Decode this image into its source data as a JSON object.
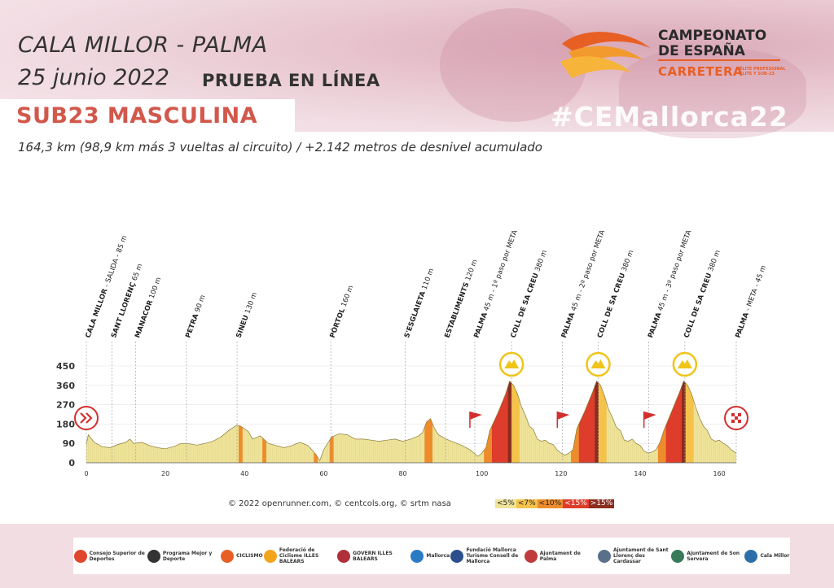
{
  "header": {
    "route": "CALA MILLOR - PALMA",
    "date": "25 junio 2022",
    "race_type": "PRUEBA EN LÍNEA",
    "category": "SUB23 MASCULINA",
    "hashtag": "#CEMallorca22",
    "subtitle": "164,3 km (98,9 km más 3 vueltas al circuito) / +2.142 metros de desnivel acumulado"
  },
  "logo": {
    "line1": "CAMPEONATO",
    "line2": "DE ESPAÑA",
    "line3": "CARRETERA",
    "line4": "ÉLITE PROFESIONAL ÉLITE Y SUB-23"
  },
  "credits": "© 2022 openrunner.com, © centcols.org, © srtm nasa",
  "legend": [
    {
      "label": "<5%",
      "color": "#efe49a"
    },
    {
      "label": "<7%",
      "color": "#f5c24a"
    },
    {
      "label": "<10%",
      "color": "#ee8c2c"
    },
    {
      "label": "<15%",
      "color": "#dd3d2a"
    },
    {
      "label": ">15%",
      "color": "#8b2c1e"
    }
  ],
  "footer": [
    {
      "name": "consejo-superior-deportes",
      "text": "Consejo Superior de Deportes",
      "color": "#e0462d"
    },
    {
      "name": "mpd",
      "text": "Programa Mejor y Deporte",
      "color": "#333333"
    },
    {
      "name": "real-federacion-ciclismo",
      "text": "CICLISMO",
      "color": "#e85f24"
    },
    {
      "name": "federacio-ciclisme-illes-balears",
      "text": "Federació de Ciclisme ILLES BALEARS",
      "color": "#f2a51c"
    },
    {
      "name": "govern-illes-balears",
      "text": "GOVERN ILLES BALEARS",
      "color": "#b0303a"
    },
    {
      "name": "mallorca",
      "text": "Mallorca",
      "color": "#2b7bc4"
    },
    {
      "name": "fundacion-mallorca-turismo",
      "text": "Fundació Mallorca Turisme Consell de Mallorca",
      "color": "#2a4f8c"
    },
    {
      "name": "ajuntament-palma",
      "text": "Ajuntament de Palma",
      "color": "#c03b3b"
    },
    {
      "name": "ajuntament-sant-llorenc",
      "text": "Ajuntament de Sant Llorenç des Cardassar",
      "color": "#5a6f8a"
    },
    {
      "name": "ajuntament-son-servera",
      "text": "Ajuntament de Son Servera",
      "color": "#3a7a5a"
    },
    {
      "name": "cala-millor",
      "text": "Cala Millor",
      "color": "#2c6fa8"
    }
  ],
  "chart_data": {
    "type": "area",
    "title": "",
    "xlabel": "",
    "ylabel": "",
    "xlim": [
      0,
      164.3
    ],
    "ylim": [
      0,
      450
    ],
    "yticks": [
      0,
      90,
      180,
      270,
      360,
      450
    ],
    "xticks": [
      0,
      20,
      40,
      60,
      80,
      100,
      120,
      140,
      160
    ],
    "profile": [
      [
        0,
        85
      ],
      [
        0.5,
        130
      ],
      [
        2,
        95
      ],
      [
        4,
        75
      ],
      [
        6,
        70
      ],
      [
        8,
        85
      ],
      [
        10,
        95
      ],
      [
        11,
        110
      ],
      [
        12,
        90
      ],
      [
        14,
        95
      ],
      [
        16,
        80
      ],
      [
        18,
        70
      ],
      [
        20,
        65
      ],
      [
        22,
        75
      ],
      [
        24,
        90
      ],
      [
        26,
        88
      ],
      [
        28,
        82
      ],
      [
        30,
        90
      ],
      [
        32,
        100
      ],
      [
        34,
        120
      ],
      [
        36,
        150
      ],
      [
        38,
        175
      ],
      [
        39,
        170
      ],
      [
        41,
        145
      ],
      [
        42,
        110
      ],
      [
        44,
        125
      ],
      [
        46,
        90
      ],
      [
        48,
        80
      ],
      [
        50,
        70
      ],
      [
        52,
        80
      ],
      [
        54,
        95
      ],
      [
        56,
        80
      ],
      [
        58,
        40
      ],
      [
        59,
        10
      ],
      [
        60,
        60
      ],
      [
        62,
        120
      ],
      [
        64,
        135
      ],
      [
        66,
        130
      ],
      [
        68,
        110
      ],
      [
        70,
        110
      ],
      [
        72,
        105
      ],
      [
        74,
        100
      ],
      [
        76,
        105
      ],
      [
        78,
        110
      ],
      [
        80,
        100
      ],
      [
        82,
        110
      ],
      [
        84,
        125
      ],
      [
        85,
        140
      ],
      [
        86,
        190
      ],
      [
        87,
        205
      ],
      [
        88,
        160
      ],
      [
        89,
        130
      ],
      [
        91,
        110
      ],
      [
        93,
        95
      ],
      [
        95,
        80
      ],
      [
        97,
        60
      ],
      [
        98,
        45
      ],
      [
        99,
        30
      ],
      [
        100,
        45
      ],
      [
        101,
        70
      ],
      [
        102,
        150
      ],
      [
        104,
        230
      ],
      [
        106,
        320
      ],
      [
        107,
        380
      ],
      [
        108,
        360
      ],
      [
        109,
        320
      ],
      [
        110,
        260
      ],
      [
        111,
        220
      ],
      [
        112,
        170
      ],
      [
        113,
        155
      ],
      [
        114,
        110
      ],
      [
        115,
        100
      ],
      [
        116,
        105
      ],
      [
        117,
        90
      ],
      [
        118,
        85
      ],
      [
        119,
        60
      ],
      [
        120,
        45
      ],
      [
        121,
        35
      ],
      [
        122,
        45
      ],
      [
        123,
        60
      ],
      [
        124,
        160
      ],
      [
        126,
        240
      ],
      [
        128,
        330
      ],
      [
        129,
        380
      ],
      [
        130,
        360
      ],
      [
        131,
        310
      ],
      [
        132,
        250
      ],
      [
        133,
        210
      ],
      [
        134,
        165
      ],
      [
        135,
        150
      ],
      [
        136,
        105
      ],
      [
        137,
        100
      ],
      [
        138,
        110
      ],
      [
        139,
        90
      ],
      [
        140,
        80
      ],
      [
        141,
        55
      ],
      [
        142,
        45
      ],
      [
        143,
        50
      ],
      [
        144,
        60
      ],
      [
        145,
        95
      ],
      [
        146,
        150
      ],
      [
        148,
        240
      ],
      [
        150,
        330
      ],
      [
        151,
        380
      ],
      [
        152,
        360
      ],
      [
        153,
        320
      ],
      [
        154,
        260
      ],
      [
        155,
        210
      ],
      [
        156,
        170
      ],
      [
        157,
        150
      ],
      [
        158,
        110
      ],
      [
        159,
        100
      ],
      [
        160,
        105
      ],
      [
        161,
        90
      ],
      [
        162,
        80
      ],
      [
        163,
        60
      ],
      [
        164.3,
        45
      ]
    ],
    "steep_ranges": [
      {
        "from": 38.5,
        "to": 39.5,
        "level": "<10%"
      },
      {
        "from": 44.5,
        "to": 45.5,
        "level": "<10%"
      },
      {
        "from": 57.5,
        "to": 58.5,
        "level": "<10%"
      },
      {
        "from": 61.5,
        "to": 62.5,
        "level": "<10%"
      },
      {
        "from": 85.5,
        "to": 87.5,
        "level": "<10%"
      },
      {
        "from": 100.5,
        "to": 102.5,
        "level": "<10%"
      },
      {
        "from": 102.5,
        "to": 106.5,
        "level": "<15%"
      },
      {
        "from": 106.5,
        "to": 107.5,
        "level": ">15%"
      },
      {
        "from": 107.5,
        "to": 109.5,
        "level": "<7%"
      },
      {
        "from": 122.5,
        "to": 124.5,
        "level": "<10%"
      },
      {
        "from": 124.5,
        "to": 128.5,
        "level": "<15%"
      },
      {
        "from": 128.5,
        "to": 129.5,
        "level": ">15%"
      },
      {
        "from": 129.5,
        "to": 131.5,
        "level": "<7%"
      },
      {
        "from": 144.5,
        "to": 146.5,
        "level": "<10%"
      },
      {
        "from": 146.5,
        "to": 150.5,
        "level": "<15%"
      },
      {
        "from": 150.5,
        "to": 151.5,
        "level": ">15%"
      },
      {
        "from": 151.5,
        "to": 153.5,
        "level": "<7%"
      }
    ],
    "waypoints": [
      {
        "km": 0,
        "name": "CALA MILLOR",
        "info": " - SALIDA - 85 m"
      },
      {
        "km": 6.5,
        "name": "SANT LLORENÇ",
        "info": " 65 m"
      },
      {
        "km": 12.5,
        "name": "MANACOR",
        "info": " 100 m"
      },
      {
        "km": 25.3,
        "name": "PETRA",
        "info": " 90 m"
      },
      {
        "km": 38.1,
        "name": "SINEU",
        "info": " 130 m"
      },
      {
        "km": 61.8,
        "name": "PÒRTOL",
        "info": " 160 m"
      },
      {
        "km": 80.6,
        "name": "S'ESGLAIETA",
        "info": " 110 m"
      },
      {
        "km": 90.8,
        "name": "ESTABLIMENTS",
        "info": " 120 m"
      },
      {
        "km": 98.2,
        "name": "PALMA",
        "info": " 45 m - 1º paso por META"
      },
      {
        "km": 107.5,
        "name": "COLL DE SA CREU",
        "info": " 380 m"
      },
      {
        "km": 120.3,
        "name": "PALMA",
        "info": " 45 m - 2º paso por META"
      },
      {
        "km": 129.4,
        "name": "COLL DE SA CREU",
        "info": " 380 m"
      },
      {
        "km": 142.2,
        "name": "PALMA",
        "info": " 45 m - 3º paso por META"
      },
      {
        "km": 151.3,
        "name": "COLL DE SA CREU",
        "info": " 380 m"
      },
      {
        "km": 164.3,
        "name": "PALMA",
        "info": " - META - 45 m"
      }
    ],
    "climbs": [
      107.5,
      129.4,
      151.3
    ],
    "flags": [
      98.2,
      120.3,
      142.2
    ],
    "start_km": 0,
    "finish_km": 164.3
  }
}
